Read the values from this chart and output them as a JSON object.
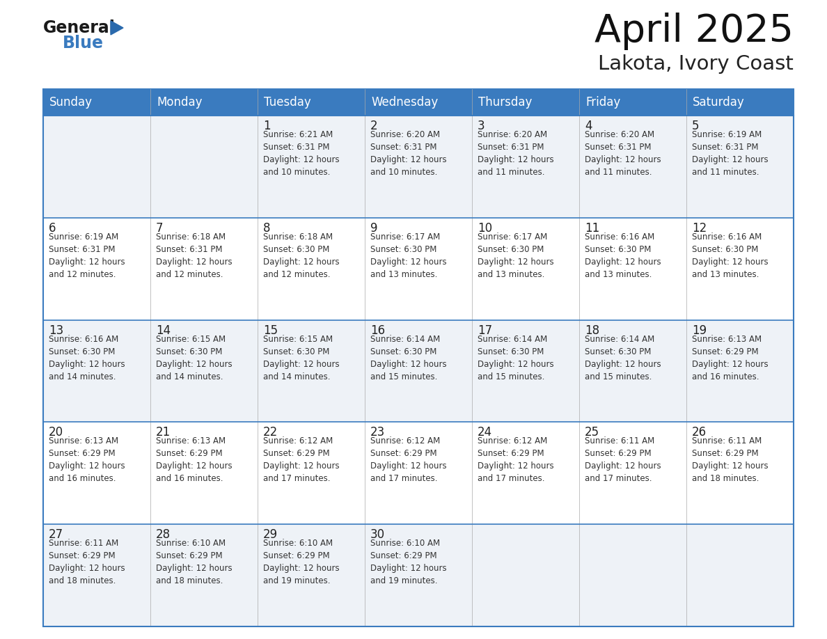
{
  "title": "April 2025",
  "subtitle": "Lakota, Ivory Coast",
  "header_bg": "#3a7bbf",
  "header_text": "#ffffff",
  "weekdays": [
    "Sunday",
    "Monday",
    "Tuesday",
    "Wednesday",
    "Thursday",
    "Friday",
    "Saturday"
  ],
  "row_bg_odd": "#eef2f7",
  "row_bg_even": "#ffffff",
  "cell_border": "#3a7bbf",
  "day_number_color": "#222222",
  "cell_text_color": "#333333",
  "calendar": [
    [
      {
        "day": "",
        "text": ""
      },
      {
        "day": "",
        "text": ""
      },
      {
        "day": "1",
        "text": "Sunrise: 6:21 AM\nSunset: 6:31 PM\nDaylight: 12 hours\nand 10 minutes."
      },
      {
        "day": "2",
        "text": "Sunrise: 6:20 AM\nSunset: 6:31 PM\nDaylight: 12 hours\nand 10 minutes."
      },
      {
        "day": "3",
        "text": "Sunrise: 6:20 AM\nSunset: 6:31 PM\nDaylight: 12 hours\nand 11 minutes."
      },
      {
        "day": "4",
        "text": "Sunrise: 6:20 AM\nSunset: 6:31 PM\nDaylight: 12 hours\nand 11 minutes."
      },
      {
        "day": "5",
        "text": "Sunrise: 6:19 AM\nSunset: 6:31 PM\nDaylight: 12 hours\nand 11 minutes."
      }
    ],
    [
      {
        "day": "6",
        "text": "Sunrise: 6:19 AM\nSunset: 6:31 PM\nDaylight: 12 hours\nand 12 minutes."
      },
      {
        "day": "7",
        "text": "Sunrise: 6:18 AM\nSunset: 6:31 PM\nDaylight: 12 hours\nand 12 minutes."
      },
      {
        "day": "8",
        "text": "Sunrise: 6:18 AM\nSunset: 6:30 PM\nDaylight: 12 hours\nand 12 minutes."
      },
      {
        "day": "9",
        "text": "Sunrise: 6:17 AM\nSunset: 6:30 PM\nDaylight: 12 hours\nand 13 minutes."
      },
      {
        "day": "10",
        "text": "Sunrise: 6:17 AM\nSunset: 6:30 PM\nDaylight: 12 hours\nand 13 minutes."
      },
      {
        "day": "11",
        "text": "Sunrise: 6:16 AM\nSunset: 6:30 PM\nDaylight: 12 hours\nand 13 minutes."
      },
      {
        "day": "12",
        "text": "Sunrise: 6:16 AM\nSunset: 6:30 PM\nDaylight: 12 hours\nand 13 minutes."
      }
    ],
    [
      {
        "day": "13",
        "text": "Sunrise: 6:16 AM\nSunset: 6:30 PM\nDaylight: 12 hours\nand 14 minutes."
      },
      {
        "day": "14",
        "text": "Sunrise: 6:15 AM\nSunset: 6:30 PM\nDaylight: 12 hours\nand 14 minutes."
      },
      {
        "day": "15",
        "text": "Sunrise: 6:15 AM\nSunset: 6:30 PM\nDaylight: 12 hours\nand 14 minutes."
      },
      {
        "day": "16",
        "text": "Sunrise: 6:14 AM\nSunset: 6:30 PM\nDaylight: 12 hours\nand 15 minutes."
      },
      {
        "day": "17",
        "text": "Sunrise: 6:14 AM\nSunset: 6:30 PM\nDaylight: 12 hours\nand 15 minutes."
      },
      {
        "day": "18",
        "text": "Sunrise: 6:14 AM\nSunset: 6:30 PM\nDaylight: 12 hours\nand 15 minutes."
      },
      {
        "day": "19",
        "text": "Sunrise: 6:13 AM\nSunset: 6:29 PM\nDaylight: 12 hours\nand 16 minutes."
      }
    ],
    [
      {
        "day": "20",
        "text": "Sunrise: 6:13 AM\nSunset: 6:29 PM\nDaylight: 12 hours\nand 16 minutes."
      },
      {
        "day": "21",
        "text": "Sunrise: 6:13 AM\nSunset: 6:29 PM\nDaylight: 12 hours\nand 16 minutes."
      },
      {
        "day": "22",
        "text": "Sunrise: 6:12 AM\nSunset: 6:29 PM\nDaylight: 12 hours\nand 17 minutes."
      },
      {
        "day": "23",
        "text": "Sunrise: 6:12 AM\nSunset: 6:29 PM\nDaylight: 12 hours\nand 17 minutes."
      },
      {
        "day": "24",
        "text": "Sunrise: 6:12 AM\nSunset: 6:29 PM\nDaylight: 12 hours\nand 17 minutes."
      },
      {
        "day": "25",
        "text": "Sunrise: 6:11 AM\nSunset: 6:29 PM\nDaylight: 12 hours\nand 17 minutes."
      },
      {
        "day": "26",
        "text": "Sunrise: 6:11 AM\nSunset: 6:29 PM\nDaylight: 12 hours\nand 18 minutes."
      }
    ],
    [
      {
        "day": "27",
        "text": "Sunrise: 6:11 AM\nSunset: 6:29 PM\nDaylight: 12 hours\nand 18 minutes."
      },
      {
        "day": "28",
        "text": "Sunrise: 6:10 AM\nSunset: 6:29 PM\nDaylight: 12 hours\nand 18 minutes."
      },
      {
        "day": "29",
        "text": "Sunrise: 6:10 AM\nSunset: 6:29 PM\nDaylight: 12 hours\nand 19 minutes."
      },
      {
        "day": "30",
        "text": "Sunrise: 6:10 AM\nSunset: 6:29 PM\nDaylight: 12 hours\nand 19 minutes."
      },
      {
        "day": "",
        "text": ""
      },
      {
        "day": "",
        "text": ""
      },
      {
        "day": "",
        "text": ""
      }
    ]
  ],
  "logo_general_color": "#1a1a1a",
  "logo_blue_color": "#3a7bbf",
  "logo_triangle_color": "#2a6aad",
  "fig_width": 11.88,
  "fig_height": 9.18,
  "dpi": 100
}
